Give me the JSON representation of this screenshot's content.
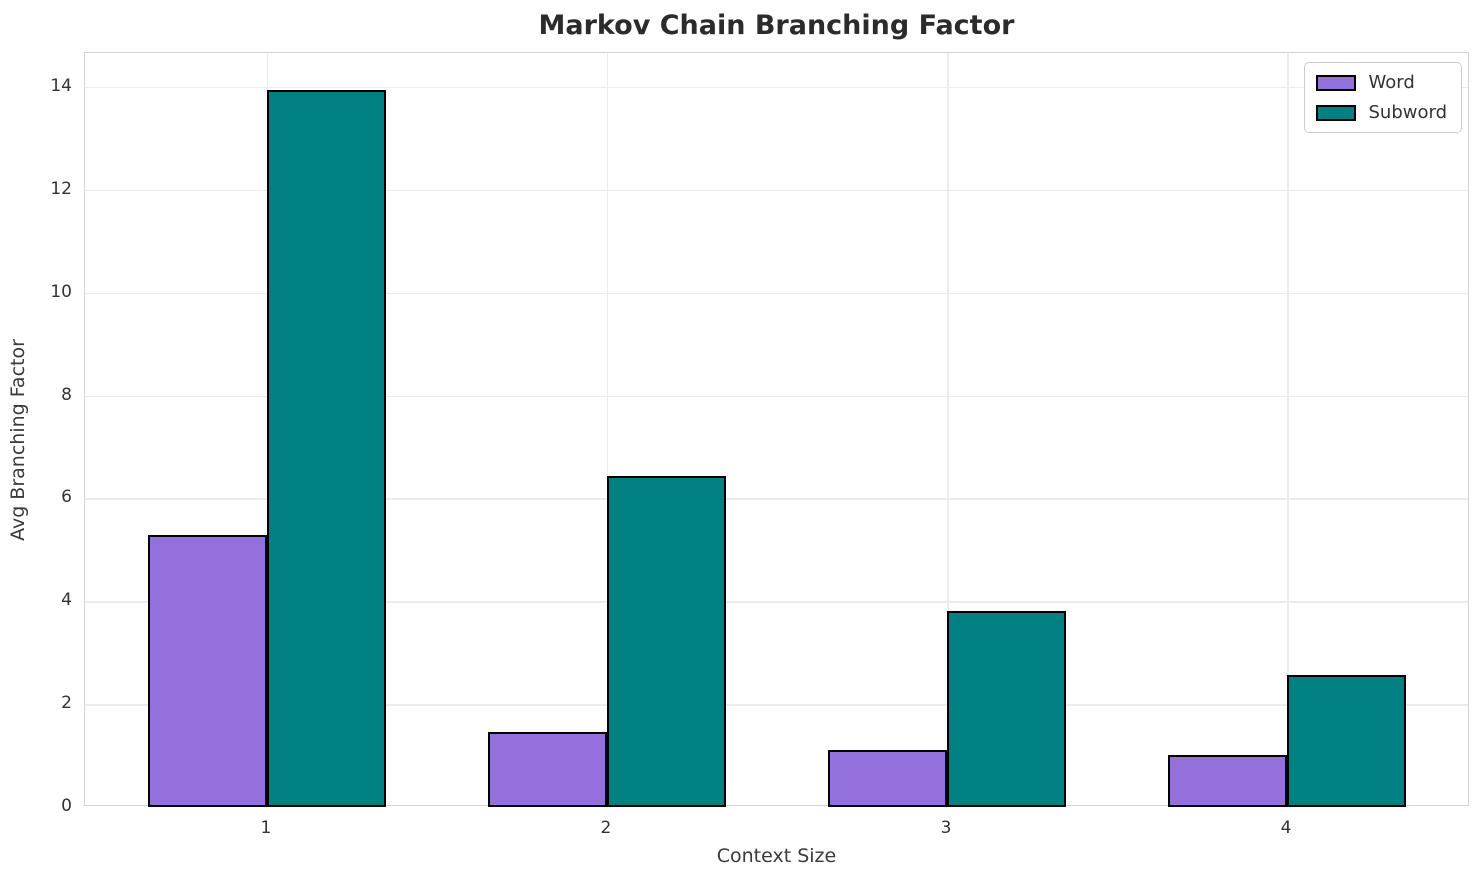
{
  "title": "Markov Chain Branching Factor",
  "chart_data": {
    "type": "bar",
    "categories": [
      "1",
      "2",
      "3",
      "4"
    ],
    "series": [
      {
        "name": "Word",
        "color": "#9370DB",
        "values": [
          5.28,
          1.46,
          1.1,
          1.02
        ]
      },
      {
        "name": "Subword",
        "color": "#008080",
        "values": [
          13.95,
          6.43,
          3.82,
          2.56
        ]
      }
    ],
    "title": "Markov Chain Branching Factor",
    "xlabel": "Context Size",
    "ylabel": "Avg Branching Factor",
    "ylim": [
      0,
      14.66
    ],
    "yticks": [
      "0",
      "2",
      "4",
      "6",
      "8",
      "10",
      "12",
      "14"
    ],
    "grid": "on",
    "legend_position": "upper right",
    "bar_width": 0.35,
    "bar_edge_color": "#000000",
    "colors": {
      "word": "#9370DB",
      "subword": "#008080",
      "grid": "#ececec",
      "spine": "#d4d4d4",
      "title_text": "#2b2b2b",
      "tick_text": "#333333"
    }
  }
}
